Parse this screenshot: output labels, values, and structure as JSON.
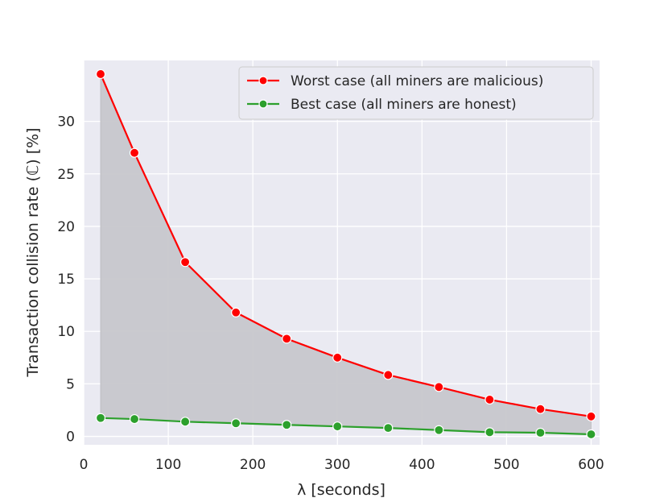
{
  "chart_data": {
    "type": "line",
    "title": "",
    "xlabel": "λ [seconds]",
    "ylabel": "Transaction collision rate (ℂ) [%]",
    "xlim": [
      0,
      610
    ],
    "ylim": [
      -0.8,
      35.8
    ],
    "xticks": [
      0,
      100,
      200,
      300,
      400,
      500,
      600
    ],
    "yticks": [
      0,
      5,
      10,
      15,
      20,
      25,
      30
    ],
    "grid": true,
    "legend_position": "top-right",
    "shaded_between_series": true,
    "x": [
      20,
      60,
      120,
      180,
      240,
      300,
      360,
      420,
      480,
      540,
      600
    ],
    "series": [
      {
        "name": "Worst case (all miners are malicious)",
        "color": "#ff0000",
        "values": [
          34.5,
          27.0,
          16.6,
          11.8,
          9.3,
          7.5,
          5.85,
          4.7,
          3.5,
          2.6,
          1.9
        ]
      },
      {
        "name": "Best case (all miners are honest)",
        "color": "#2ca02c",
        "values": [
          1.75,
          1.65,
          1.4,
          1.25,
          1.1,
          0.95,
          0.8,
          0.6,
          0.4,
          0.35,
          0.2
        ]
      }
    ],
    "colors": {
      "plot_background": "#eaeaf2",
      "fill": "#c7c7cc",
      "grid": "#ffffff"
    }
  }
}
